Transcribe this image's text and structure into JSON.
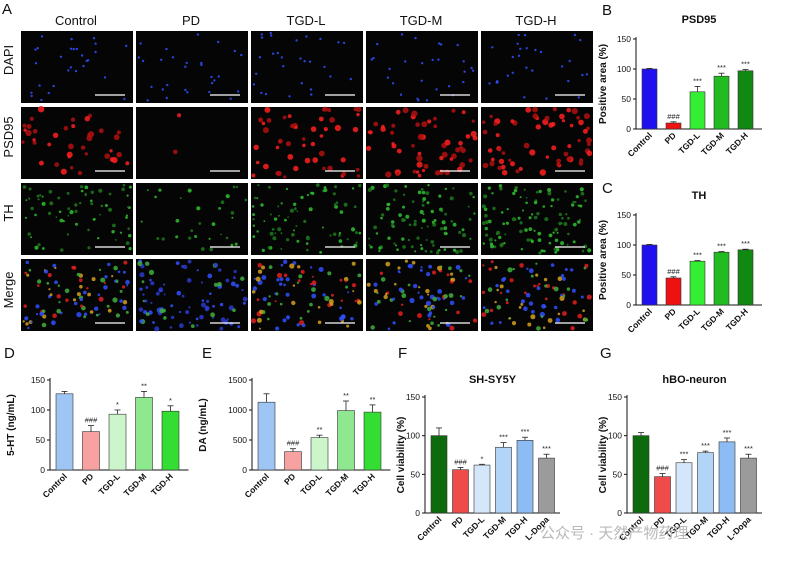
{
  "panels": {
    "A": {
      "letter": "A",
      "columns": [
        "Control",
        "PD",
        "TGD-L",
        "TGD-M",
        "TGD-H"
      ],
      "rows": [
        {
          "label": "DAPI",
          "color": "#2a3bff"
        },
        {
          "label": "PSD95",
          "color": "#ff2a2a"
        },
        {
          "label": "TH",
          "color": "#33dd33"
        },
        {
          "label": "Merge",
          "color": "#111111"
        }
      ]
    }
  },
  "watermark": "公众号 · 天然产物药理",
  "chart_data": [
    {
      "id": "B",
      "letter": "B",
      "type": "bar",
      "title": "PSD95",
      "ylabel": "Positive area (%)",
      "ylim": [
        0,
        150
      ],
      "yticks": [
        0,
        50,
        100,
        150
      ],
      "categories": [
        "Control",
        "PD",
        "TGD-L",
        "TGD-M",
        "TGD-H"
      ],
      "values": [
        100,
        10,
        62,
        88,
        97
      ],
      "errors": [
        1,
        2,
        9,
        5,
        2
      ],
      "colors": [
        "#1f10ee",
        "#ee1111",
        "#33ee33",
        "#22bb22",
        "#118811"
      ],
      "significance": [
        "",
        "###",
        "***",
        "***",
        "***"
      ]
    },
    {
      "id": "C",
      "letter": "C",
      "type": "bar",
      "title": "TH",
      "ylabel": "Positive area (%)",
      "ylim": [
        0,
        150
      ],
      "yticks": [
        0,
        50,
        100,
        150
      ],
      "categories": [
        "Control",
        "PD",
        "TGD-L",
        "TGD-M",
        "TGD-H"
      ],
      "values": [
        100,
        45,
        73,
        88,
        92
      ],
      "errors": [
        1,
        2,
        1,
        1,
        1
      ],
      "colors": [
        "#1f10ee",
        "#ee1111",
        "#33ee33",
        "#22bb22",
        "#118811"
      ],
      "significance": [
        "",
        "###",
        "***",
        "***",
        "***"
      ]
    },
    {
      "id": "D",
      "letter": "D",
      "type": "bar",
      "title": "",
      "ylabel": "5-HT (ng/mL)",
      "ylim": [
        0,
        150
      ],
      "yticks": [
        0,
        50,
        100,
        150
      ],
      "categories": [
        "Control",
        "PD",
        "TGD-L",
        "TGD-M",
        "TGD-H"
      ],
      "values": [
        127,
        64,
        93,
        121,
        98
      ],
      "errors": [
        4,
        10,
        7,
        10,
        9
      ],
      "colors": [
        "#9ec5f3",
        "#f7a1a1",
        "#ccf5cc",
        "#8fe88f",
        "#33dd33"
      ],
      "significance": [
        "",
        "###",
        "*",
        "**",
        "*"
      ]
    },
    {
      "id": "E",
      "letter": "E",
      "type": "bar",
      "title": "",
      "ylabel": "DA (ng/mL)",
      "ylim": [
        0,
        1500
      ],
      "yticks": [
        0,
        500,
        1000,
        1500
      ],
      "categories": [
        "Control",
        "PD",
        "TGD-L",
        "TGD-M",
        "TGD-H"
      ],
      "values": [
        1130,
        305,
        540,
        990,
        965
      ],
      "errors": [
        140,
        50,
        40,
        160,
        120
      ],
      "colors": [
        "#9ec5f3",
        "#f7a1a1",
        "#ccf5cc",
        "#8fe88f",
        "#33dd33"
      ],
      "significance": [
        "",
        "###",
        "**",
        "**",
        "**"
      ]
    },
    {
      "id": "F",
      "letter": "F",
      "type": "bar",
      "title": "SH-SY5Y",
      "ylabel": "Cell viability (%)",
      "ylim": [
        0,
        150
      ],
      "yticks": [
        0,
        50,
        100,
        150
      ],
      "categories": [
        "Control",
        "PD",
        "TGD-L",
        "TGD-M",
        "TGD-H",
        "L-Dopa"
      ],
      "values": [
        100,
        56,
        62,
        85,
        94,
        71
      ],
      "errors": [
        10,
        3,
        1,
        6,
        4,
        5
      ],
      "colors": [
        "#0d6b0d",
        "#ef4b4b",
        "#d4e6fa",
        "#b2d4f7",
        "#8cbcf3",
        "#9b9b9b"
      ],
      "significance": [
        "",
        "###",
        "*",
        "***",
        "***",
        "***"
      ]
    },
    {
      "id": "G",
      "letter": "G",
      "type": "bar",
      "title": "hBO-neuron",
      "ylabel": "Cell viability (%)",
      "ylim": [
        0,
        150
      ],
      "yticks": [
        0,
        50,
        100,
        150
      ],
      "categories": [
        "Control",
        "PD",
        "TGD-L",
        "TGD-M",
        "TGD-H",
        "L-Dopa"
      ],
      "values": [
        100,
        47,
        65,
        78,
        92,
        71
      ],
      "errors": [
        4,
        4,
        4,
        2,
        5,
        5
      ],
      "colors": [
        "#0d6b0d",
        "#ef4b4b",
        "#d4e6fa",
        "#b2d4f7",
        "#8cbcf3",
        "#9b9b9b"
      ],
      "significance": [
        "",
        "###",
        "***",
        "***",
        "***",
        "***"
      ]
    }
  ]
}
